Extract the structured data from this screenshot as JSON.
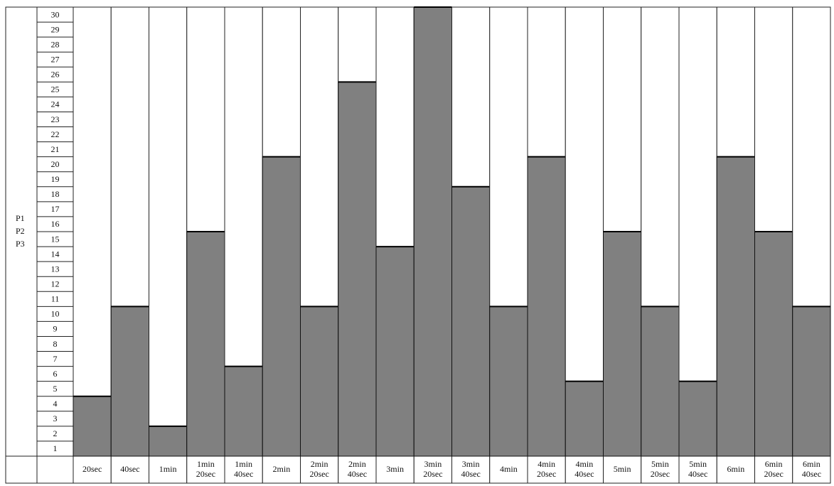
{
  "chart_data": {
    "type": "bar",
    "ylabel": [
      "P1",
      "P2",
      "P3"
    ],
    "categories": [
      [
        "20sec"
      ],
      [
        "40sec"
      ],
      [
        "1min"
      ],
      [
        "1min",
        "20sec"
      ],
      [
        "1min",
        "40sec"
      ],
      [
        "2min"
      ],
      [
        "2min",
        "20sec"
      ],
      [
        "2min",
        "40sec"
      ],
      [
        "3min"
      ],
      [
        "3min",
        "20sec"
      ],
      [
        "3min",
        "40sec"
      ],
      [
        "4min"
      ],
      [
        "4min",
        "20sec"
      ],
      [
        "4min",
        "40sec"
      ],
      [
        "5min"
      ],
      [
        "5min",
        "20sec"
      ],
      [
        "5min",
        "40sec"
      ],
      [
        "6min"
      ],
      [
        "6min",
        "20sec"
      ],
      [
        "6min",
        "40sec"
      ]
    ],
    "values": [
      4,
      10,
      2,
      15,
      6,
      20,
      10,
      25,
      14,
      30,
      18,
      10,
      20,
      5,
      15,
      10,
      5,
      20,
      15,
      10
    ],
    "color": "#808080",
    "ylim": [
      0,
      30
    ],
    "yticks": [
      1,
      2,
      3,
      4,
      5,
      6,
      7,
      8,
      9,
      10,
      11,
      12,
      13,
      14,
      15,
      16,
      17,
      18,
      19,
      20,
      21,
      22,
      23,
      24,
      25,
      26,
      27,
      28,
      29,
      30
    ]
  }
}
